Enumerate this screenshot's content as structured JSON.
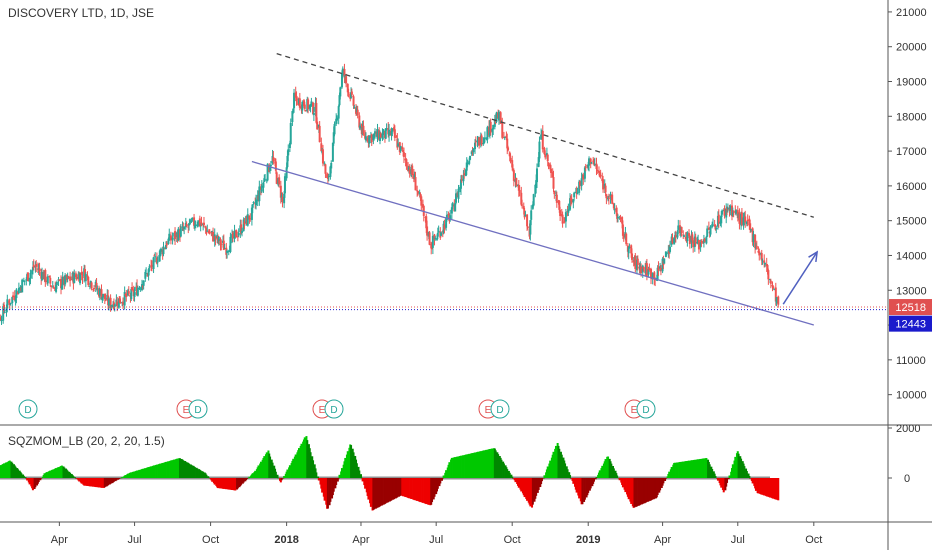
{
  "header": {
    "title": "DISCOVERY LTD, 1D, JSE"
  },
  "indicator": {
    "title": "SQZMOM_LB (20, 2, 20, 1.5)"
  },
  "price_tags": [
    {
      "value": "12518",
      "color": "#e05050",
      "text_color": "#ffffff"
    },
    {
      "value": "12443",
      "color": "#1a1acc",
      "text_color": "#ffffff"
    }
  ],
  "events": [
    {
      "labels": [
        "D"
      ]
    },
    {
      "labels": [
        "E",
        "D"
      ]
    },
    {
      "labels": [
        "E",
        "D"
      ]
    },
    {
      "labels": [
        "E",
        "D"
      ]
    },
    {
      "labels": [
        "E",
        "D"
      ]
    }
  ],
  "colors": {
    "up": "#26a69a",
    "down": "#ef5350",
    "mom_pos": "#00c000",
    "mom_neg": "#e00000",
    "trend_upper": "#444444",
    "trend_lower": "#7070c0",
    "arrow": "#5060c0"
  },
  "chart_data": [
    {
      "type": "candlestick",
      "title": "DISCOVERY LTD, 1D, JSE",
      "x_tick_labels": [
        "Apr",
        "Jul",
        "Oct",
        "2018",
        "Apr",
        "Jul",
        "Oct",
        "2019",
        "Apr",
        "Jul",
        "Oct"
      ],
      "y_tick_labels": [
        "10000",
        "11000",
        "12000",
        "13000",
        "14000",
        "15000",
        "16000",
        "17000",
        "18000",
        "19000",
        "20000",
        "21000"
      ],
      "ylim": [
        9300,
        21400
      ],
      "grid": false,
      "last_close": 12518,
      "reference_level": 12443,
      "close_path": [
        {
          "x": "2017-01-02",
          "y": 11600
        },
        {
          "x": "2017-02-01",
          "y": 12700
        },
        {
          "x": "2017-03-03",
          "y": 13700
        },
        {
          "x": "2017-03-25",
          "y": 13100
        },
        {
          "x": "2017-05-01",
          "y": 13500
        },
        {
          "x": "2017-06-01",
          "y": 12600
        },
        {
          "x": "2017-07-01",
          "y": 12900
        },
        {
          "x": "2017-08-10",
          "y": 14400
        },
        {
          "x": "2017-09-15",
          "y": 15000
        },
        {
          "x": "2017-10-20",
          "y": 14200
        },
        {
          "x": "2017-11-20",
          "y": 15200
        },
        {
          "x": "2017-12-15",
          "y": 16800
        },
        {
          "x": "2017-12-28",
          "y": 15500
        },
        {
          "x": "2018-01-10",
          "y": 18500
        },
        {
          "x": "2018-02-05",
          "y": 18200
        },
        {
          "x": "2018-02-20",
          "y": 16000
        },
        {
          "x": "2018-03-10",
          "y": 19300
        },
        {
          "x": "2018-04-05",
          "y": 17400
        },
        {
          "x": "2018-05-10",
          "y": 17500
        },
        {
          "x": "2018-06-05",
          "y": 16200
        },
        {
          "x": "2018-06-25",
          "y": 14300
        },
        {
          "x": "2018-07-20",
          "y": 15200
        },
        {
          "x": "2018-08-10",
          "y": 16900
        },
        {
          "x": "2018-09-15",
          "y": 18000
        },
        {
          "x": "2018-10-05",
          "y": 16200
        },
        {
          "x": "2018-10-22",
          "y": 14600
        },
        {
          "x": "2018-11-05",
          "y": 17500
        },
        {
          "x": "2018-12-01",
          "y": 15000
        },
        {
          "x": "2019-01-05",
          "y": 16800
        },
        {
          "x": "2019-02-05",
          "y": 15200
        },
        {
          "x": "2019-02-25",
          "y": 13800
        },
        {
          "x": "2019-03-25",
          "y": 13400
        },
        {
          "x": "2019-04-20",
          "y": 14800
        },
        {
          "x": "2019-05-15",
          "y": 14300
        },
        {
          "x": "2019-06-20",
          "y": 15400
        },
        {
          "x": "2019-07-15",
          "y": 14800
        },
        {
          "x": "2019-08-05",
          "y": 13600
        },
        {
          "x": "2019-08-20",
          "y": 12518
        }
      ],
      "annotations": {
        "resistance_line": [
          {
            "x": "2017-12-20",
            "y": 19800
          },
          {
            "x": "2019-10-01",
            "y": 15100
          }
        ],
        "support_line": [
          {
            "x": "2017-11-20",
            "y": 16700
          },
          {
            "x": "2019-10-01",
            "y": 12000
          }
        ],
        "projection_arrow": [
          {
            "x": "2019-08-25",
            "y": 12600
          },
          {
            "x": "2019-10-05",
            "y": 14100
          }
        ]
      }
    },
    {
      "type": "bar",
      "title": "SQZMOM_LB (20, 2, 20, 1.5)",
      "y_tick_labels": [
        "0",
        "2000"
      ],
      "ylim": [
        -2100,
        2100
      ],
      "momentum_path": [
        {
          "x": "2017-01-01",
          "y": 200
        },
        {
          "x": "2017-02-01",
          "y": 700
        },
        {
          "x": "2017-02-20",
          "y": 0
        },
        {
          "x": "2017-03-01",
          "y": -500
        },
        {
          "x": "2017-03-15",
          "y": 200
        },
        {
          "x": "2017-04-05",
          "y": 500
        },
        {
          "x": "2017-05-01",
          "y": -300
        },
        {
          "x": "2017-05-25",
          "y": -400
        },
        {
          "x": "2017-06-25",
          "y": 200
        },
        {
          "x": "2017-07-25",
          "y": 500
        },
        {
          "x": "2017-08-25",
          "y": 800
        },
        {
          "x": "2017-09-25",
          "y": 200
        },
        {
          "x": "2017-10-10",
          "y": -400
        },
        {
          "x": "2017-11-01",
          "y": -500
        },
        {
          "x": "2017-11-25",
          "y": 300
        },
        {
          "x": "2017-12-10",
          "y": 1100
        },
        {
          "x": "2017-12-25",
          "y": -200
        },
        {
          "x": "2018-01-25",
          "y": 1700
        },
        {
          "x": "2018-02-20",
          "y": -1300
        },
        {
          "x": "2018-03-20",
          "y": 1400
        },
        {
          "x": "2018-04-15",
          "y": -1300
        },
        {
          "x": "2018-05-20",
          "y": -700
        },
        {
          "x": "2018-06-25",
          "y": -1100
        },
        {
          "x": "2018-07-20",
          "y": 800
        },
        {
          "x": "2018-09-10",
          "y": 1200
        },
        {
          "x": "2018-10-25",
          "y": -1200
        },
        {
          "x": "2018-11-25",
          "y": 1400
        },
        {
          "x": "2018-12-25",
          "y": -1100
        },
        {
          "x": "2019-01-25",
          "y": 900
        },
        {
          "x": "2019-02-25",
          "y": -1200
        },
        {
          "x": "2019-03-25",
          "y": -800
        },
        {
          "x": "2019-04-15",
          "y": 600
        },
        {
          "x": "2019-05-25",
          "y": 800
        },
        {
          "x": "2019-06-15",
          "y": -600
        },
        {
          "x": "2019-07-01",
          "y": 1100
        },
        {
          "x": "2019-07-25",
          "y": -600
        },
        {
          "x": "2019-08-20",
          "y": -900
        }
      ]
    }
  ]
}
